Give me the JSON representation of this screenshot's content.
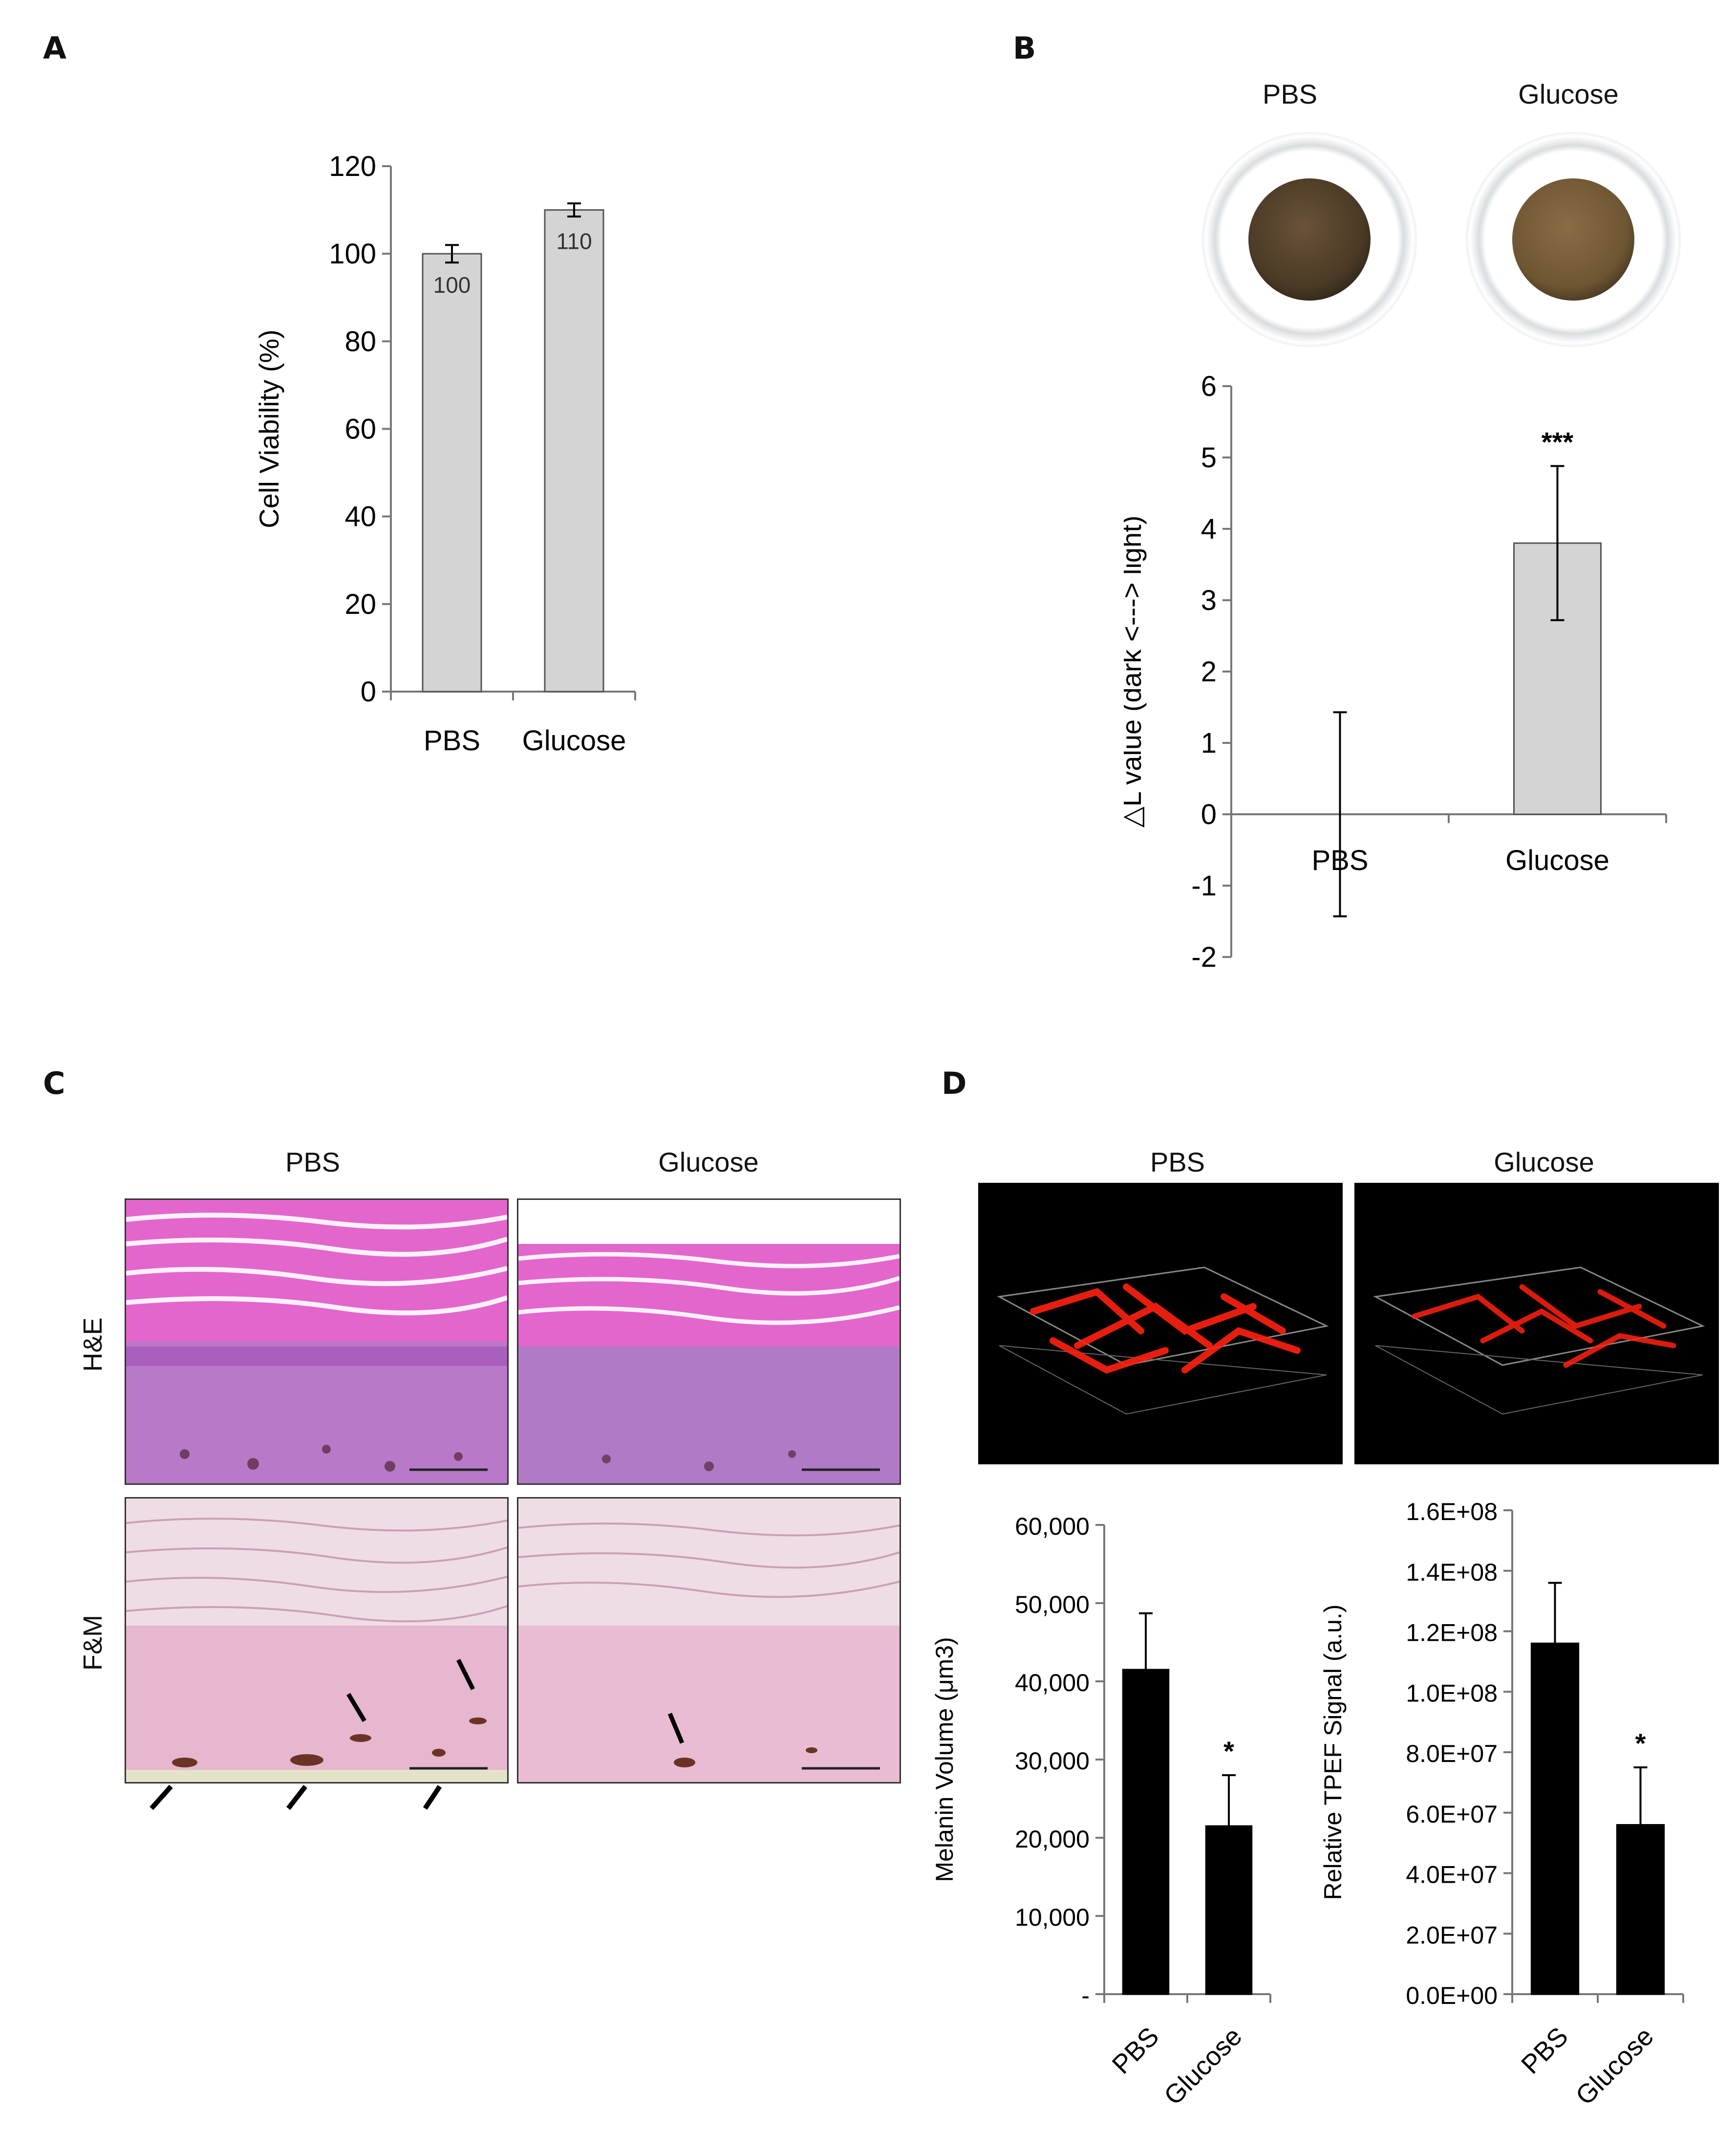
{
  "panels": {
    "A": "A",
    "B": "B",
    "C": "C",
    "D": "D"
  },
  "conditions": [
    "PBS",
    "Glucose"
  ],
  "histology": {
    "rows": [
      "H&E",
      "F&M"
    ]
  },
  "colors": {
    "bar_gray": "#d4d4d4",
    "bar_black": "#000000",
    "he_pink": "#e062c8",
    "fm_pink": "#e9b8d2",
    "melanin_red": "#ff1a0a"
  },
  "chart_data": [
    {
      "id": "A",
      "type": "bar",
      "categories": [
        "PBS",
        "Glucose"
      ],
      "values": [
        100,
        110
      ],
      "errors": [
        2,
        1.5
      ],
      "data_labels": [
        "100",
        "110"
      ],
      "ylabel": "Cell Viability (%)",
      "ylim": [
        0,
        120
      ],
      "yticks": [
        "0",
        "20",
        "40",
        "60",
        "80",
        "100",
        "120"
      ],
      "bar_color": "gray",
      "grid": false
    },
    {
      "id": "B",
      "type": "bar",
      "categories": [
        "PBS",
        "Glucose"
      ],
      "values": [
        0,
        3.8
      ],
      "errors": [
        1.43,
        1.08
      ],
      "annotations": [
        "",
        "***"
      ],
      "ylabel": "△L value (dark <---> light)",
      "ylim": [
        -2,
        6
      ],
      "yticks": [
        "-2",
        "-1",
        "0",
        "1",
        "2",
        "3",
        "4",
        "5",
        "6"
      ],
      "bar_color": "gray",
      "grid": false
    },
    {
      "id": "D1",
      "type": "bar",
      "categories": [
        "PBS",
        "Glucose"
      ],
      "values": [
        41500,
        21500
      ],
      "errors": [
        7200,
        6500
      ],
      "annotations": [
        "",
        "*"
      ],
      "ylabel": "Melanin Volume (μm3)",
      "ylim": [
        0,
        60000
      ],
      "yticks": [
        "-",
        "10,000",
        "20,000",
        "30,000",
        "40,000",
        "50,000",
        "60,000"
      ],
      "bar_color": "black",
      "grid": false
    },
    {
      "id": "D2",
      "type": "bar",
      "categories": [
        "PBS",
        "Glucose"
      ],
      "values": [
        116000000,
        56000000
      ],
      "errors": [
        20000000,
        19000000
      ],
      "annotations": [
        "",
        "*"
      ],
      "ylabel": "Relative TPEF Signal (a.u.)",
      "ylim": [
        0,
        160000000
      ],
      "yticks": [
        "0.0E+00",
        "2.0E+07",
        "4.0E+07",
        "6.0E+07",
        "8.0E+07",
        "1.0E+08",
        "1.2E+08",
        "1.4E+08",
        "1.6E+08"
      ],
      "bar_color": "black",
      "grid": false
    }
  ]
}
